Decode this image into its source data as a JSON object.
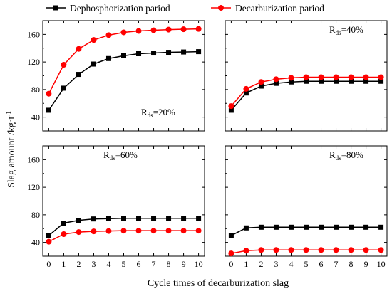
{
  "chart_data": {
    "type": "line",
    "xlabel": "Cycle times of decarburization slag",
    "ylabel": "Slag amount /kg·t",
    "ylabel_sup": "-1",
    "legend": {
      "placement": "top",
      "entries": [
        {
          "name": "Dephosphorization pariod",
          "color": "#000000",
          "marker": "square"
        },
        {
          "name": "Decarburization pariod",
          "color": "#ff0000",
          "marker": "circle"
        }
      ]
    },
    "x": [
      0,
      1,
      2,
      3,
      4,
      5,
      6,
      7,
      8,
      9,
      10
    ],
    "xticks": [
      "0",
      "1",
      "2",
      "3",
      "4",
      "5",
      "6",
      "7",
      "8",
      "9",
      "10"
    ],
    "ylim": [
      20,
      180
    ],
    "yticks": [
      "40",
      "80",
      "120",
      "160"
    ],
    "grid": false,
    "panels": [
      {
        "label_main": "R",
        "label_sub": "ds",
        "label_value": "=20%",
        "label_placement": "bottom-right",
        "series": [
          {
            "name": "Dephosphorization pariod",
            "values": [
              50,
              82,
              102,
              117,
              125,
              129,
              132,
              133,
              134,
              134.5,
              135
            ]
          },
          {
            "name": "Decarburization pariod",
            "values": [
              74,
              116,
              139,
              152,
              159,
              163,
              165,
              166,
              167,
              167.5,
              168
            ]
          }
        ]
      },
      {
        "label_main": "R",
        "label_sub": "ds",
        "label_value": "=40%",
        "label_placement": "top-right",
        "series": [
          {
            "name": "Dephosphorization pariod",
            "values": [
              50,
              75,
              85,
              89,
              91,
              92,
              92,
              92,
              92,
              92,
              92
            ]
          },
          {
            "name": "Decarburization pariod",
            "values": [
              56,
              81,
              91,
              95,
              97,
              98,
              98,
              98,
              98,
              98,
              98
            ]
          }
        ]
      },
      {
        "label_main": "R",
        "label_sub": "ds",
        "label_value": "=60%",
        "label_placement": "top-center",
        "series": [
          {
            "name": "Dephosphorization pariod",
            "values": [
              50,
              68,
              72,
              74,
              74.5,
              75,
              75,
              75,
              75,
              75,
              75
            ]
          },
          {
            "name": "Decarburization pariod",
            "values": [
              41,
              52,
              55,
              56,
              56.5,
              57,
              57,
              57,
              57,
              57,
              57
            ]
          }
        ]
      },
      {
        "label_main": "R",
        "label_sub": "ds",
        "label_value": "=80%",
        "label_placement": "top-right",
        "series": [
          {
            "name": "Dephosphorization pariod",
            "values": [
              50,
              61,
              62,
              62,
              62,
              62,
              62,
              62,
              62,
              62,
              62
            ]
          },
          {
            "name": "Decarburization pariod",
            "values": [
              24,
              28,
              29,
              29,
              29,
              29,
              29,
              29,
              29,
              29,
              29
            ]
          }
        ]
      }
    ]
  }
}
